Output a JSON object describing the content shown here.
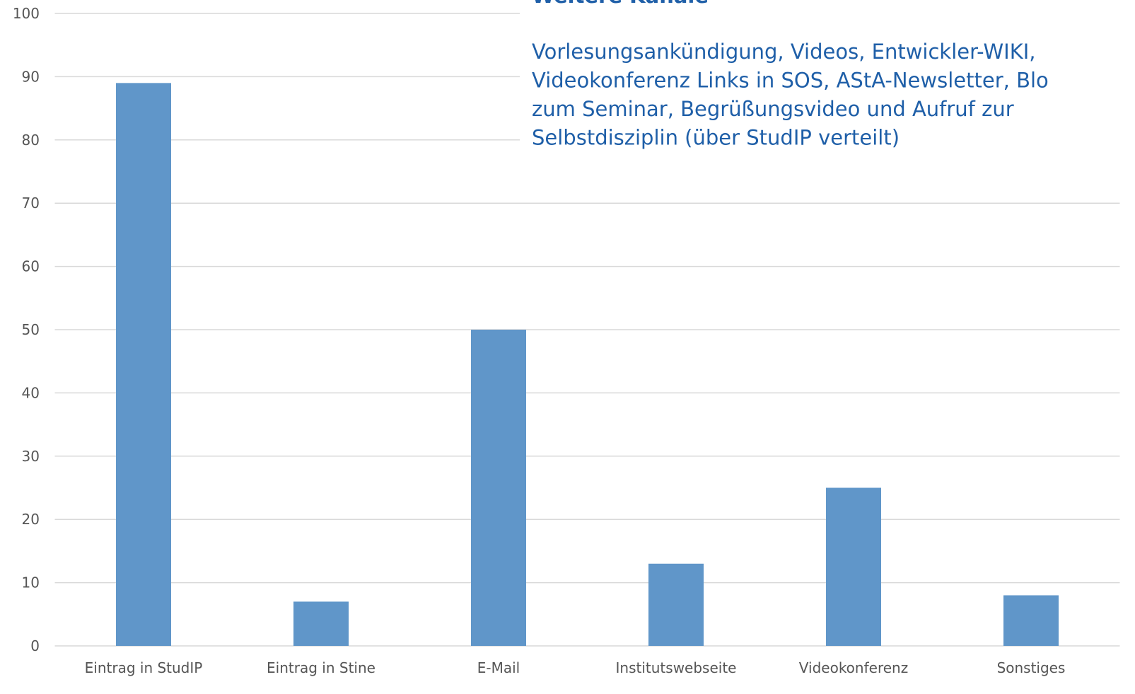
{
  "chart_data": {
    "type": "bar",
    "categories": [
      "Eintrag in StudIP",
      "Eintrag in Stine",
      "E-Mail",
      "Institutswebseite",
      "Videokonferenz",
      "Sonstiges"
    ],
    "values": [
      89,
      7,
      50,
      13,
      25,
      8
    ],
    "color": "#6096c9",
    "ylim": [
      0,
      100
    ],
    "yticks": [
      0,
      10,
      20,
      30,
      40,
      50,
      60,
      70,
      80,
      90,
      100
    ],
    "grid": true,
    "annotation": {
      "title": "Weitere Kanäle",
      "lines": [
        "Vorlesungsankündigung, Videos, Entwickler-WIKI,",
        "Videokonferenz Links in SOS, AStA-Newsletter, Blo",
        "zum Seminar,  Begrüßungsvideo und Aufruf zur",
        "Selbstdisziplin (über StudIP verteilt)"
      ]
    }
  }
}
